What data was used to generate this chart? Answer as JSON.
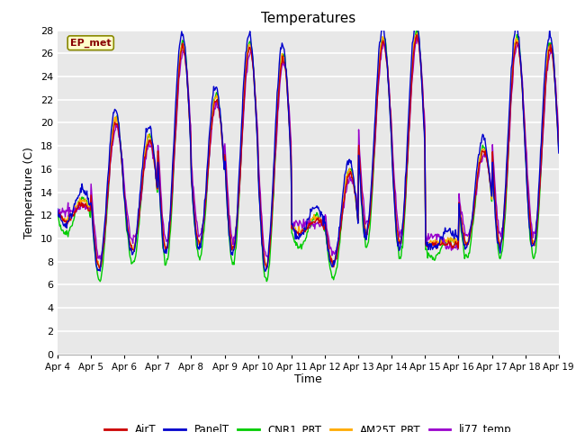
{
  "title": "Temperatures",
  "ylabel": "Temperature (C)",
  "xlabel": "Time",
  "annotation": "EP_met",
  "ylim": [
    0,
    28
  ],
  "fig_facecolor": "#ffffff",
  "plot_facecolor": "#e8e8e8",
  "series": {
    "AirT": {
      "color": "#cc0000",
      "lw": 1.0
    },
    "PanelT": {
      "color": "#0000cc",
      "lw": 1.0
    },
    "CNR1_PRT": {
      "color": "#00cc00",
      "lw": 1.0
    },
    "AM25T_PRT": {
      "color": "#ffaa00",
      "lw": 1.0
    },
    "li77_temp": {
      "color": "#9900cc",
      "lw": 1.0
    }
  },
  "xtick_labels": [
    "Apr 4",
    "Apr 5",
    "Apr 6",
    "Apr 7",
    "Apr 8",
    "Apr 9",
    "Apr 10",
    "Apr 11",
    "Apr 12",
    "Apr 13",
    "Apr 14",
    "Apr 15",
    "Apr 16",
    "Apr 17",
    "Apr 18",
    "Apr 19"
  ],
  "ytick_values": [
    0,
    2,
    4,
    6,
    8,
    10,
    12,
    14,
    16,
    18,
    20,
    22,
    24,
    26,
    28
  ],
  "day_peaks_air": [
    13.0,
    20.0,
    18.5,
    26.5,
    22.0,
    26.5,
    25.5,
    11.5,
    15.5,
    27.0,
    27.5,
    9.5,
    17.5,
    27.0,
    26.5
  ],
  "day_mins_air": [
    11.5,
    7.5,
    9.0,
    9.0,
    9.5,
    9.0,
    7.5,
    10.5,
    7.8,
    10.5,
    9.5,
    9.5,
    9.5,
    9.5,
    9.5
  ]
}
